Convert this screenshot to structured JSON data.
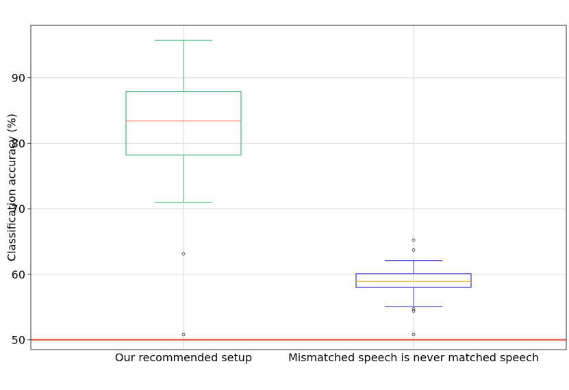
{
  "chart_data": {
    "type": "box",
    "title": "",
    "xlabel": "",
    "ylabel": "Classification accuracy (%)",
    "ylim": [
      48.5,
      98
    ],
    "yticks": [
      50,
      60,
      70,
      80,
      90
    ],
    "grid": true,
    "reference_line": {
      "y": 50,
      "color": "#e8402a"
    },
    "boxes": [
      {
        "category": "Our recommended setup",
        "whisker_low": 71.0,
        "q1": 78.2,
        "median": 83.4,
        "q3": 87.9,
        "whisker_high": 95.7,
        "outliers": [
          63.1,
          50.8
        ],
        "box_color": "#3cb371",
        "median_color": "#f08070"
      },
      {
        "category": "Mismatched speech is never matched speech",
        "whisker_low": 55.1,
        "q1": 58.0,
        "median": 58.9,
        "q3": 60.1,
        "whisker_high": 62.1,
        "outliers": [
          65.2,
          63.7,
          54.7,
          54.4,
          50.8
        ],
        "box_color": "#3333cc",
        "median_color": "#f0c040"
      }
    ]
  }
}
